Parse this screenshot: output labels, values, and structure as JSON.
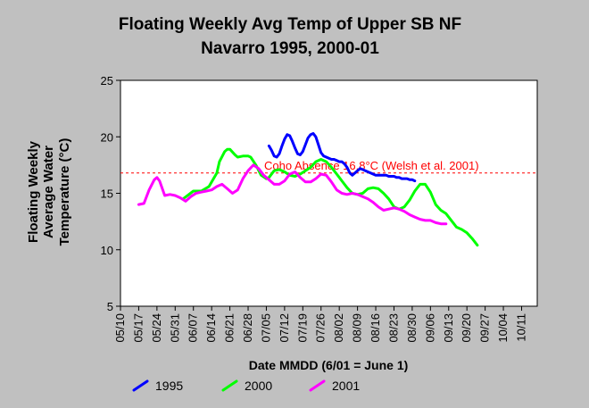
{
  "chart_data": {
    "type": "line",
    "title_lines": [
      "Floating Weekly Avg Temp of Upper SB NF",
      "Navarro 1995, 2000-01"
    ],
    "ylabel_lines": [
      "Floating Weekly",
      "Average Water",
      "Temperature (°C)"
    ],
    "xlabel": "Date MMDD (6/01 = June 1)",
    "ylim": [
      5,
      25
    ],
    "yticks": [
      5,
      10,
      15,
      20,
      25
    ],
    "x_categories": [
      "05/10",
      "05/17",
      "05/24",
      "05/31",
      "06/07",
      "06/14",
      "06/21",
      "06/28",
      "07/05",
      "07/12",
      "07/19",
      "07/26",
      "08/02",
      "08/09",
      "08/16",
      "08/23",
      "08/30",
      "09/06",
      "09/13",
      "09/20",
      "09/27",
      "10/04",
      "10/11"
    ],
    "grid": false,
    "legend_position": "bottom",
    "reference_line": {
      "label": "Coho Absence 16.8°C (Welsh et al. 2001)",
      "value": 16.8,
      "color": "#ff0000"
    },
    "series": [
      {
        "name": "1995",
        "color": "#0000ff",
        "x": [
          57,
          58,
          59,
          60,
          61,
          62,
          63,
          64,
          65,
          66,
          67,
          68,
          69,
          70,
          71,
          72,
          73,
          74,
          75,
          76,
          77,
          78,
          79,
          80,
          81,
          82,
          83,
          84,
          85,
          86,
          87,
          88,
          89,
          90,
          91,
          92,
          93,
          94,
          95,
          96,
          97,
          98,
          99,
          100,
          101,
          102,
          103,
          104,
          105,
          106,
          107,
          108,
          109,
          110,
          111,
          112,
          113
        ],
        "y": [
          19.2,
          18.8,
          18.3,
          18.2,
          18.5,
          19.2,
          19.8,
          20.2,
          20.1,
          19.6,
          19.0,
          18.5,
          18.4,
          18.7,
          19.3,
          19.9,
          20.2,
          20.3,
          20.0,
          19.3,
          18.6,
          18.3,
          18.2,
          18.1,
          18.0,
          18.0,
          17.9,
          17.8,
          17.8,
          17.6,
          17.3,
          16.8,
          16.6,
          16.8,
          17.0,
          17.2,
          17.1,
          17.0,
          16.9,
          16.8,
          16.7,
          16.6,
          16.6,
          16.6,
          16.6,
          16.6,
          16.5,
          16.5,
          16.5,
          16.4,
          16.4,
          16.3,
          16.3,
          16.3,
          16.2,
          16.2,
          16.1
        ]
      },
      {
        "name": "2000",
        "color": "#00ff00",
        "x": [
          24,
          28,
          31,
          34,
          37,
          38,
          40,
          41,
          42,
          44,
          45,
          47,
          49,
          50,
          52,
          54,
          56,
          57,
          59,
          61,
          63,
          65,
          67,
          69,
          71,
          73,
          75,
          77,
          79,
          81,
          83,
          85,
          87,
          89,
          91,
          93,
          95,
          97,
          99,
          101,
          103,
          105,
          107,
          109,
          111,
          113,
          115,
          117,
          119,
          121,
          123,
          125,
          127,
          129,
          131,
          133,
          135,
          137
        ],
        "y": [
          14.5,
          15.2,
          15.2,
          15.6,
          16.8,
          17.8,
          18.7,
          18.9,
          18.9,
          18.4,
          18.2,
          18.3,
          18.3,
          18.2,
          17.5,
          16.6,
          16.3,
          16.4,
          17.0,
          17.1,
          16.9,
          16.6,
          16.5,
          16.7,
          17.0,
          17.3,
          17.8,
          18.0,
          17.8,
          17.3,
          16.7,
          16.1,
          15.5,
          15.0,
          14.9,
          15.0,
          15.4,
          15.5,
          15.4,
          15.0,
          14.5,
          13.8,
          13.6,
          13.8,
          14.4,
          15.2,
          15.8,
          15.8,
          15.1,
          14.0,
          13.5,
          13.2,
          12.6,
          12.0,
          11.8,
          11.5,
          11.0,
          10.4
        ]
      },
      {
        "name": "2001",
        "color": "#ff00ff",
        "x": [
          7,
          9,
          11,
          13,
          14,
          15,
          17,
          19,
          21,
          23,
          25,
          27,
          29,
          31,
          33,
          35,
          37,
          39,
          41,
          43,
          45,
          47,
          49,
          51,
          53,
          55,
          57,
          59,
          61,
          63,
          65,
          67,
          69,
          71,
          73,
          75,
          77,
          79,
          81,
          83,
          85,
          87,
          89,
          91,
          93,
          95,
          97,
          99,
          101,
          103,
          105,
          107,
          109,
          111,
          113,
          115,
          117,
          119,
          121,
          123,
          125
        ],
        "y": [
          14.0,
          14.1,
          15.3,
          16.2,
          16.4,
          16.1,
          14.8,
          14.9,
          14.8,
          14.6,
          14.3,
          14.7,
          15.0,
          15.1,
          15.2,
          15.3,
          15.6,
          15.8,
          15.4,
          15.0,
          15.3,
          16.3,
          17.0,
          17.5,
          17.2,
          16.6,
          16.2,
          15.8,
          15.8,
          16.1,
          16.7,
          16.9,
          16.4,
          16.0,
          16.0,
          16.3,
          16.7,
          16.6,
          16.0,
          15.3,
          15.0,
          14.9,
          15.0,
          14.9,
          14.7,
          14.5,
          14.2,
          13.8,
          13.5,
          13.6,
          13.7,
          13.6,
          13.4,
          13.1,
          12.9,
          12.7,
          12.6,
          12.6,
          12.4,
          12.3,
          12.3
        ]
      }
    ]
  }
}
